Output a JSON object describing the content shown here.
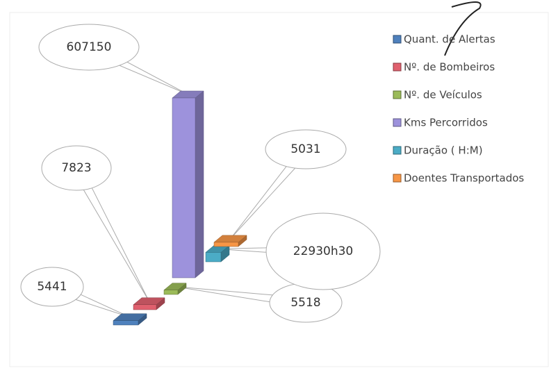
{
  "chart_data": {
    "type": "bar",
    "series": [
      {
        "name": "Quant. de Alertas",
        "color": "#4f81bd",
        "values": [
          5441
        ]
      },
      {
        "name": "Nº. de Bombeiros",
        "color": "#e0606e",
        "values": [
          7823
        ]
      },
      {
        "name": "Nº. de Veículos",
        "color": "#9bbb59",
        "values": [
          5518
        ]
      },
      {
        "name": "Kms Percorridos",
        "color": "#9d92dc",
        "values": [
          607150
        ]
      },
      {
        "name": "Duração ( H:M)",
        "color": "#4bacc6",
        "values": [
          22930.5
        ],
        "value_labels": [
          "22930h30"
        ]
      },
      {
        "name": "Doentes Transportados",
        "color": "#f79646",
        "values": [
          5031
        ]
      }
    ]
  }
}
